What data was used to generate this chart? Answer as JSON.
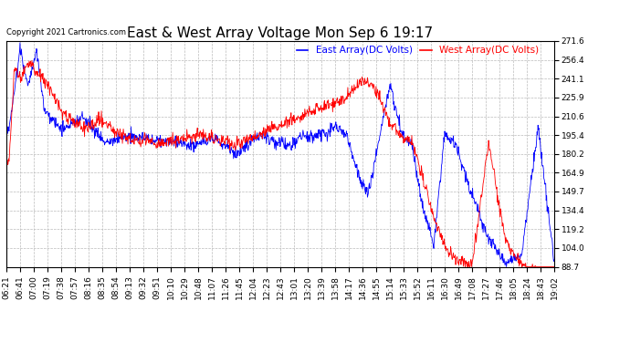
{
  "title": "East & West Array Voltage Mon Sep 6 19:17",
  "legend_east": "East Array(DC Volts)",
  "legend_west": "West Array(DC Volts)",
  "copyright": "Copyright 2021 Cartronics.com",
  "east_color": "blue",
  "west_color": "red",
  "ymin": 88.7,
  "ymax": 271.6,
  "yticks": [
    88.7,
    104.0,
    119.2,
    134.4,
    149.7,
    164.9,
    180.2,
    195.4,
    210.6,
    225.9,
    241.1,
    256.4,
    271.6
  ],
  "xtick_labels": [
    "06:21",
    "06:41",
    "07:00",
    "07:19",
    "07:38",
    "07:57",
    "08:16",
    "08:35",
    "08:54",
    "09:13",
    "09:32",
    "09:51",
    "10:10",
    "10:29",
    "10:48",
    "11:07",
    "11:26",
    "11:45",
    "12:04",
    "12:23",
    "12:43",
    "13:01",
    "13:20",
    "13:39",
    "13:58",
    "14:17",
    "14:36",
    "14:55",
    "15:14",
    "15:33",
    "15:52",
    "16:11",
    "16:30",
    "16:49",
    "17:08",
    "17:27",
    "17:46",
    "18:05",
    "18:24",
    "18:43",
    "19:02"
  ],
  "bg_color": "#ffffff",
  "plot_bg_color": "#ffffff",
  "grid_color": "#bbbbbb",
  "grid_style": "--",
  "title_fontsize": 11,
  "label_fontsize": 7.5,
  "tick_fontsize": 6.5
}
